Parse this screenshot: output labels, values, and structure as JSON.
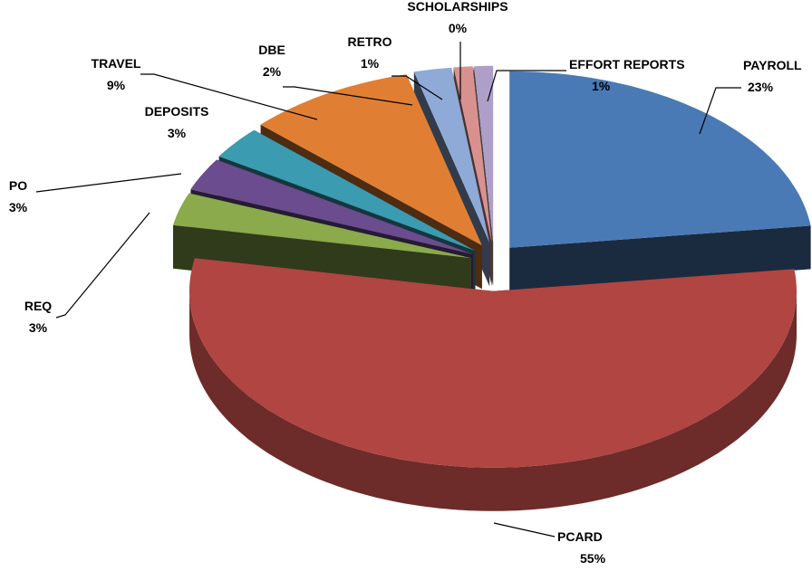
{
  "chart_data": {
    "type": "pie",
    "categories": [
      "PAYROLL",
      "PCARD",
      "REQ",
      "PO",
      "DEPOSITS",
      "TRAVEL",
      "DBE",
      "RETRO",
      "SCHOLARSHIPS",
      "EFFORT REPORTS"
    ],
    "values": [
      23,
      55,
      3,
      3,
      3,
      9,
      2,
      1,
      0,
      1
    ],
    "value_labels": [
      "23%",
      "55%",
      "3%",
      "3%",
      "3%",
      "9%",
      "2%",
      "1%",
      "0%",
      "1%"
    ],
    "colors": [
      "#4a7ab5",
      "#b04542",
      "#8aaa4c",
      "#6b4c8e",
      "#3b9bb0",
      "#e07f33",
      "#8faad6",
      "#d99190",
      "#b8cd8f",
      "#ad9fc8"
    ]
  }
}
